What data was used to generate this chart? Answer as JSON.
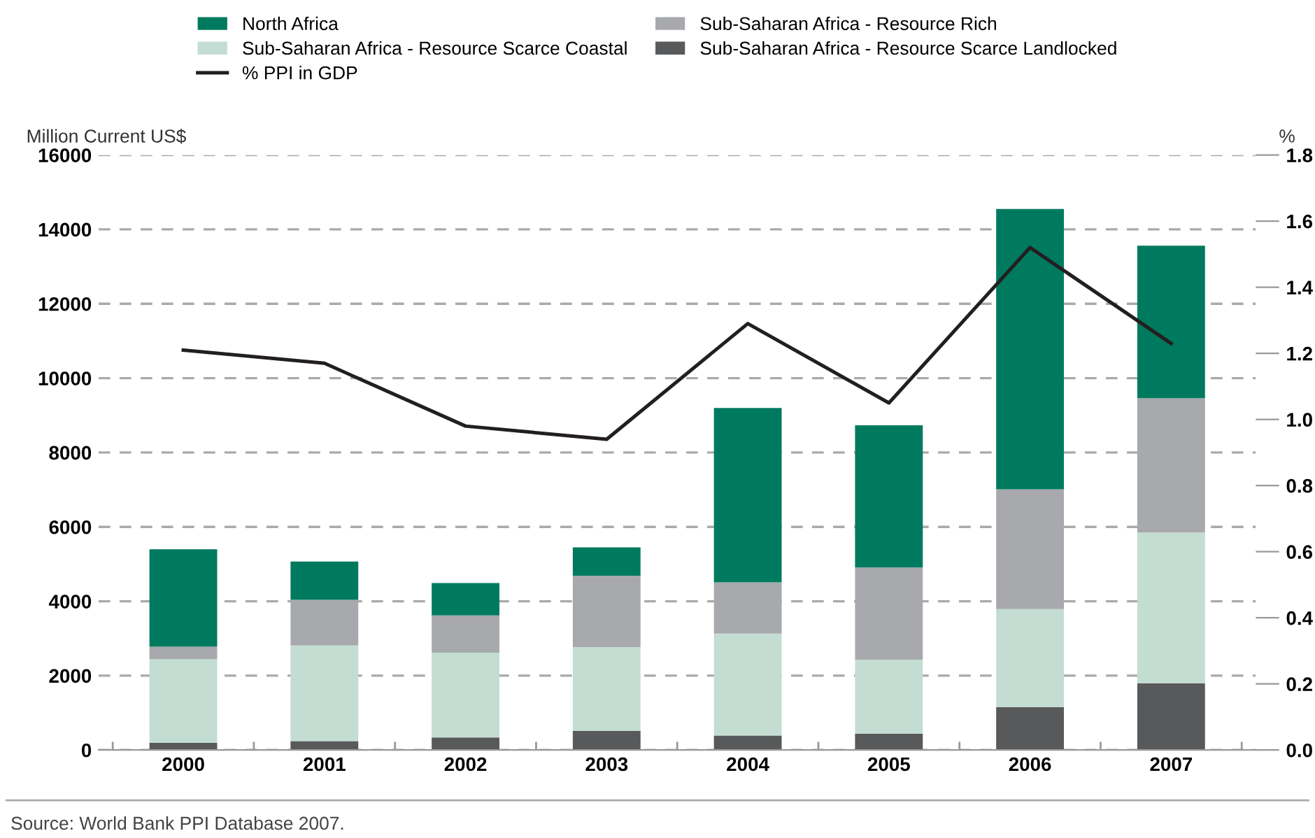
{
  "chart_data": {
    "type": "bar",
    "stacked": true,
    "categories": [
      "2000",
      "2001",
      "2002",
      "2003",
      "2004",
      "2005",
      "2006",
      "2007"
    ],
    "series": [
      {
        "name": "Sub-Saharan Africa - Resource Scarce Landlocked",
        "color": "#58595b",
        "values": [
          190,
          240,
          340,
          510,
          390,
          440,
          1150,
          1790
        ]
      },
      {
        "name": "Sub-Saharan Africa - Resource Scarce Coastal",
        "color": "#c3ddd3",
        "values": [
          2250,
          2570,
          2280,
          2260,
          2740,
          1990,
          2640,
          4060
        ]
      },
      {
        "name": "Sub-Saharan Africa - Resource Rich",
        "color": "#a7a9ac",
        "values": [
          340,
          1230,
          1000,
          1920,
          1380,
          2480,
          3220,
          3610
        ]
      },
      {
        "name": "North Africa",
        "color": "#007a5e",
        "values": [
          2620,
          1030,
          870,
          760,
          4690,
          3820,
          7540,
          4100
        ]
      },
      {
        "name": "% PPI in GDP",
        "type": "line",
        "axis": "y2",
        "color": "#231f20",
        "values": [
          1.21,
          1.17,
          0.98,
          0.94,
          1.29,
          1.05,
          1.52,
          1.23
        ]
      }
    ],
    "ylabel": "Million Current US$",
    "y2label": "%",
    "ylim": [
      0,
      16000
    ],
    "yticks": [
      0,
      2000,
      4000,
      6000,
      8000,
      10000,
      12000,
      14000,
      16000
    ],
    "y2lim": [
      0,
      1.8
    ],
    "y2ticks": [
      {
        "value": 0,
        "label": "0.0"
      },
      {
        "value": 0.2,
        "label": "0.2"
      },
      {
        "value": 0.4,
        "label": "0.4"
      },
      {
        "value": 0.6,
        "label": "0.6"
      },
      {
        "value": 0.8,
        "label": "0.8"
      },
      {
        "value": 1.0,
        "label": "1.0"
      },
      {
        "value": 1.2,
        "label": "1.2"
      },
      {
        "value": 1.4,
        "label": "1.4"
      },
      {
        "value": 1.6,
        "label": "1.6"
      },
      {
        "value": 1.8,
        "label": "1.8"
      }
    ],
    "grid": "y",
    "legend": "top",
    "marker": "none",
    "line_style": "solid",
    "annotations": [
      "Source: World Bank PPI Database 2007."
    ]
  }
}
